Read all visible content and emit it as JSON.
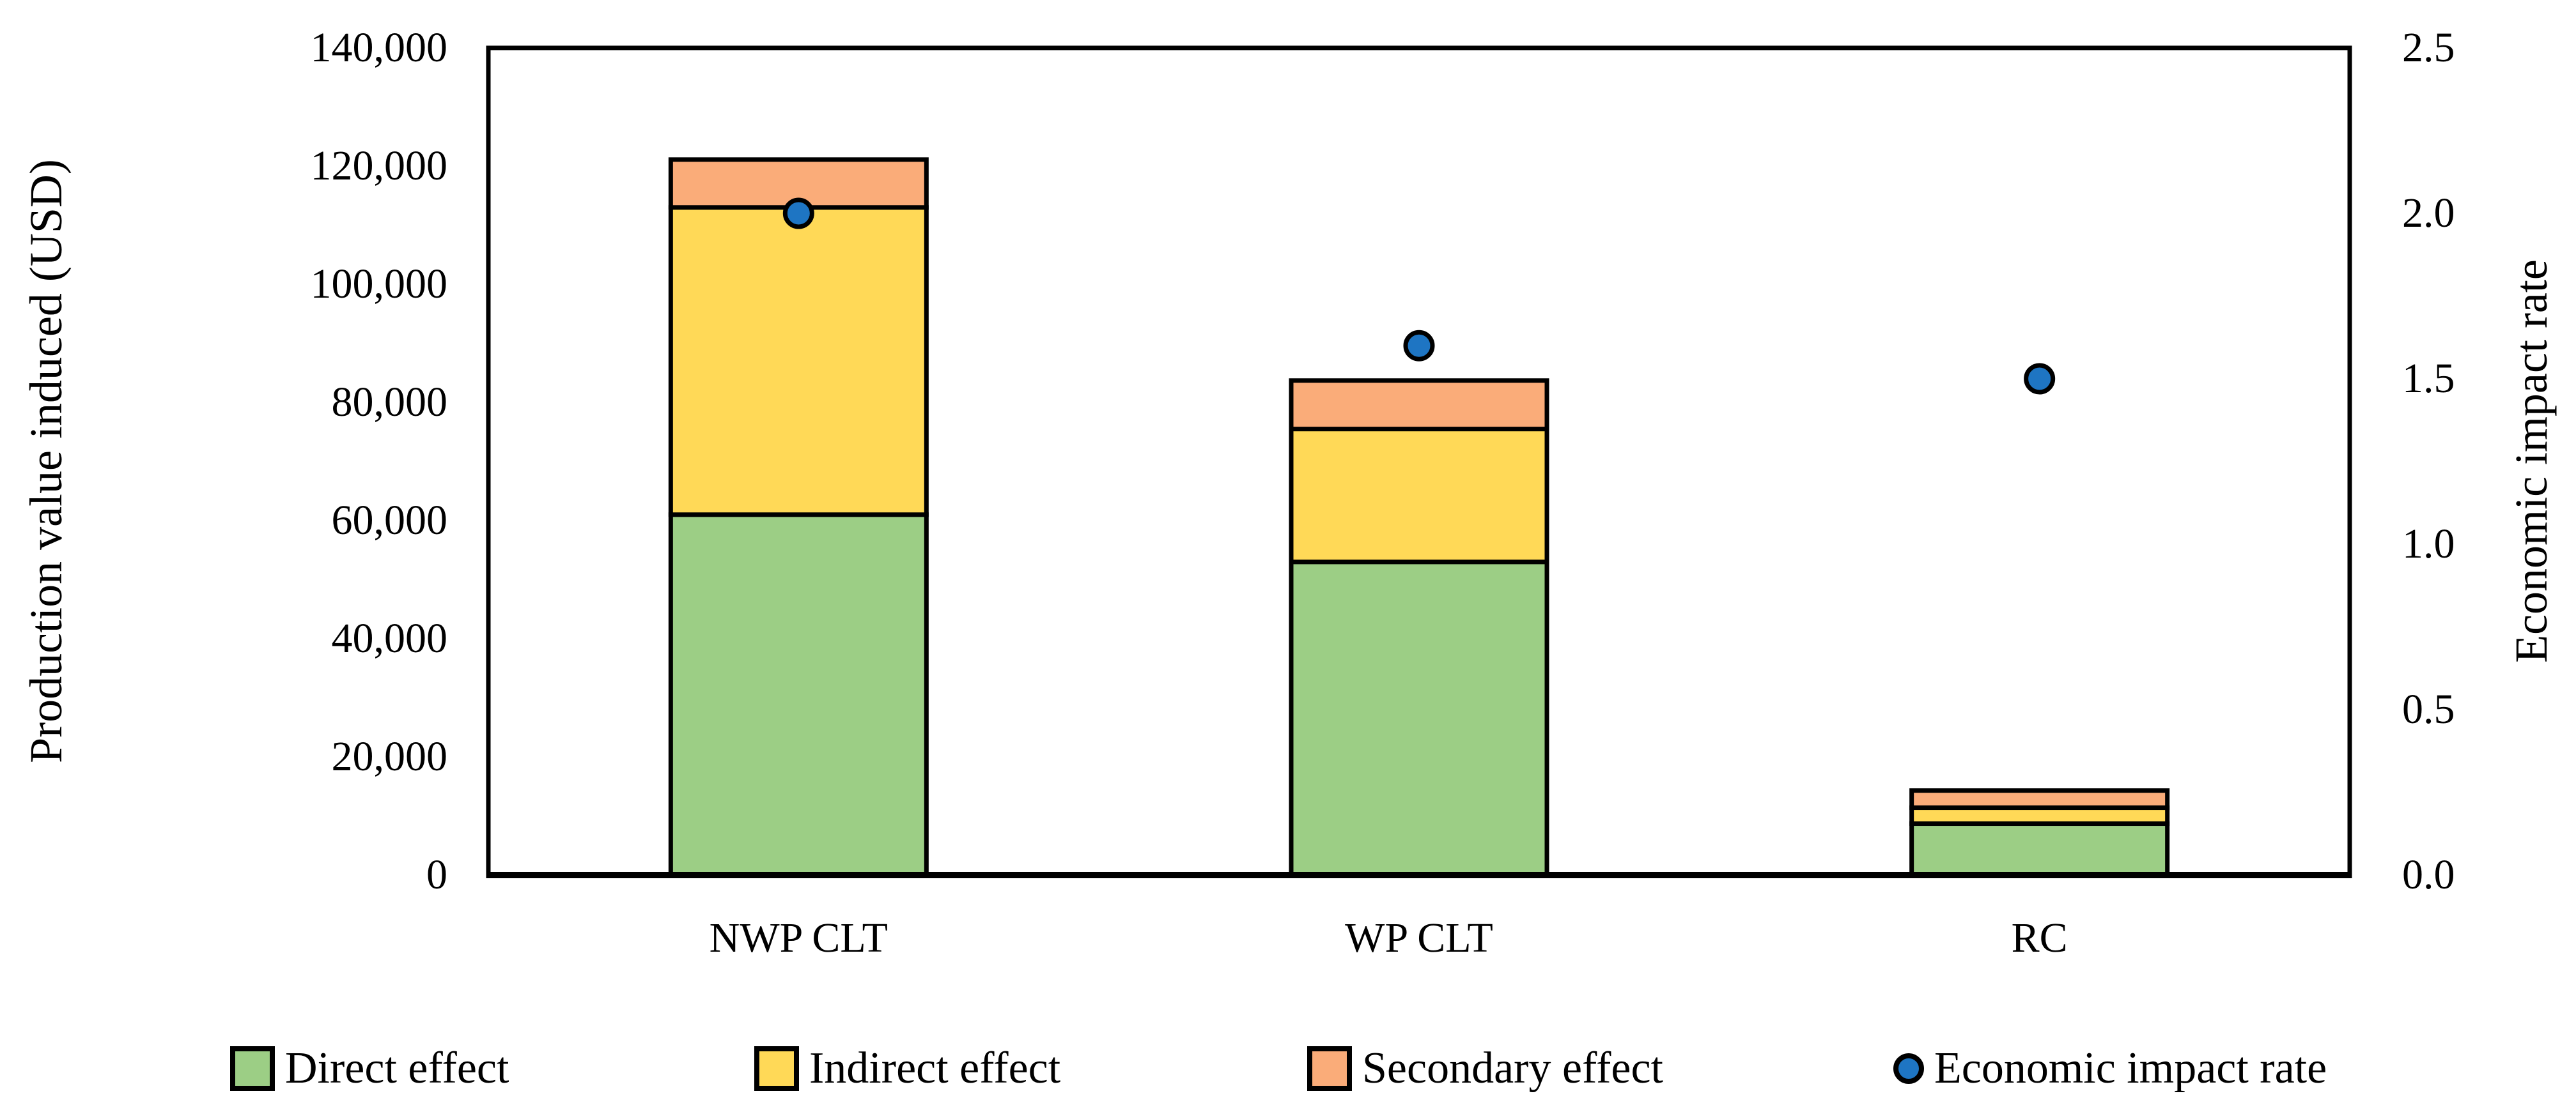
{
  "axes": {
    "left_title": "Production value induced (USD)",
    "right_title": "Economic impact rate"
  },
  "chart_data": {
    "type": "bar",
    "stacked": true,
    "grid": false,
    "legend_position": "bottom",
    "categories": [
      "NWP CLT",
      "WP CLT",
      "RC"
    ],
    "series": [
      {
        "name": "Direct effect",
        "type": "bar",
        "color": "#9CCE85",
        "values": [
          61000,
          53000,
          8700
        ]
      },
      {
        "name": "Indirect effect",
        "type": "bar",
        "color": "#FFD957",
        "values": [
          52000,
          22500,
          2700
        ]
      },
      {
        "name": "Secondary effect",
        "type": "bar",
        "color": "#FAAC79",
        "values": [
          8100,
          8200,
          2900
        ]
      },
      {
        "name": "Economic impact rate",
        "type": "scatter",
        "axis": "right",
        "color": "#1E75C3",
        "values": [
          2.0,
          1.6,
          1.5
        ]
      }
    ],
    "bar_totals": [
      121100,
      83700,
      14300
    ],
    "title": "",
    "xlabel": "",
    "ylabel": "Production value induced (USD)",
    "y2label": "Economic impact rate",
    "ylim": [
      0,
      140000
    ],
    "y2lim": [
      0,
      2.5
    ],
    "y_ticks": [
      "140,000",
      "120,000",
      "100,000",
      "80,000",
      "60,000",
      "40,000",
      "20,000",
      "0"
    ],
    "y_tick_values": [
      140000,
      120000,
      100000,
      80000,
      60000,
      40000,
      20000,
      0
    ],
    "y2_ticks": [
      "2.5",
      "2.0",
      "1.5",
      "1.0",
      "0.5",
      "0.0"
    ],
    "y2_tick_values": [
      2.5,
      2.0,
      1.5,
      1.0,
      0.5,
      0.0
    ]
  },
  "legend": [
    {
      "label": "Direct effect",
      "marker": "square",
      "color": "#9CCE85"
    },
    {
      "label": "Indirect effect",
      "marker": "square",
      "color": "#FFD957"
    },
    {
      "label": "Secondary effect",
      "marker": "square",
      "color": "#FAAC79"
    },
    {
      "label": "Economic impact rate",
      "marker": "circle",
      "color": "#1E75C3"
    }
  ],
  "colors": {
    "direct": "#9CCE85",
    "indirect": "#FFD957",
    "secondary": "#FAAC79",
    "rate_dot": "#1E75C3",
    "outline": "#000000",
    "background": "#FFFFFF"
  }
}
